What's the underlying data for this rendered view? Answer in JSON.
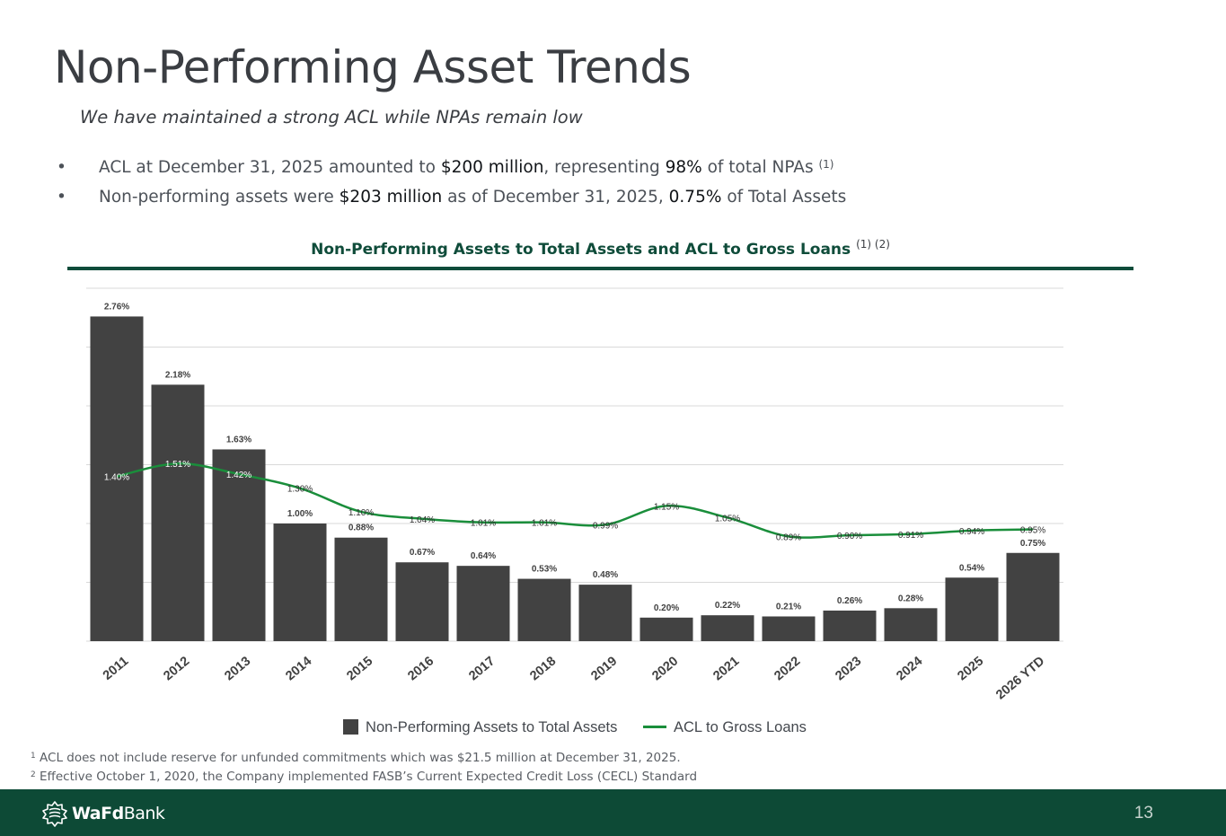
{
  "slide": {
    "title": "Non-Performing Asset Trends",
    "subtitle": "We have maintained a strong ACL while NPAs remain low",
    "bullet_char": "•",
    "bullets": [
      {
        "p1": "ACL at December 31, 2025 amounted to ",
        "h1": "$200 million",
        "p2": ", representing ",
        "h2": "98%",
        "p3": " of total NPAs",
        "sup": "(1)"
      },
      {
        "p1": "Non-performing assets were ",
        "h1": "$203 million",
        "p2": " as of December 31, 2025, ",
        "h2": "0.75%",
        "p3": " of Total Assets",
        "sup": ""
      }
    ],
    "chart_heading": "Non-Performing Assets to Total Assets and ACL to Gross Loans",
    "chart_heading_sup": "(1) (2)",
    "footnotes": [
      {
        "num": "1",
        "text": "ACL does not include reserve for unfunded commitments which was $21.5 million at December 31, 2025."
      },
      {
        "num": "2",
        "text": "Effective October 1, 2020, the Company implemented FASB’s Current Expected Credit Loss (CECL) Standard"
      }
    ],
    "logo_text_bold": "WaFd",
    "logo_text": "Bank",
    "page_number": "13"
  },
  "colors": {
    "bar": "#424242",
    "line": "#1a8e3b",
    "brand": "#0d4a36",
    "heading": "#0f4c3a",
    "grid": "#d9d9d9"
  },
  "chart_data": {
    "type": "bar",
    "title": "Non-Performing Assets to Total Assets and ACL to Gross Loans",
    "categories": [
      "2011",
      "2012",
      "2013",
      "2014",
      "2015",
      "2016",
      "2017",
      "2018",
      "2019",
      "2020",
      "2021",
      "2022",
      "2023",
      "2024",
      "2025",
      "2026 YTD"
    ],
    "ylim": [
      0,
      3.0
    ],
    "grid": true,
    "legend_position": "bottom",
    "series": [
      {
        "name": "Non-Performing Assets to Total Assets",
        "type": "bar",
        "values": [
          2.76,
          2.18,
          1.63,
          1.0,
          0.88,
          0.67,
          0.64,
          0.53,
          0.48,
          0.2,
          0.22,
          0.21,
          0.26,
          0.28,
          0.54,
          0.75
        ],
        "labels": [
          "2.76%",
          "2.18%",
          "1.63%",
          "1.00%",
          "0.88%",
          "0.67%",
          "0.64%",
          "0.53%",
          "0.48%",
          "0.20%",
          "0.22%",
          "0.21%",
          "0.26%",
          "0.28%",
          "0.54%",
          "0.75%"
        ]
      },
      {
        "name": "ACL to Gross Loans",
        "type": "line",
        "values": [
          1.4,
          1.51,
          1.42,
          1.3,
          1.1,
          1.04,
          1.01,
          1.01,
          0.99,
          1.15,
          1.05,
          0.89,
          0.9,
          0.91,
          0.94,
          0.95
        ],
        "labels": [
          "1.40%",
          "1.51%",
          "1.42%",
          "1.30%",
          "1.10%",
          "1.04%",
          "1.01%",
          "1.01%",
          "0.99%",
          "1.15%",
          "1.05%",
          "0.89%",
          "0.90%",
          "0.91%",
          "0.94%",
          "0.95%"
        ]
      }
    ]
  }
}
